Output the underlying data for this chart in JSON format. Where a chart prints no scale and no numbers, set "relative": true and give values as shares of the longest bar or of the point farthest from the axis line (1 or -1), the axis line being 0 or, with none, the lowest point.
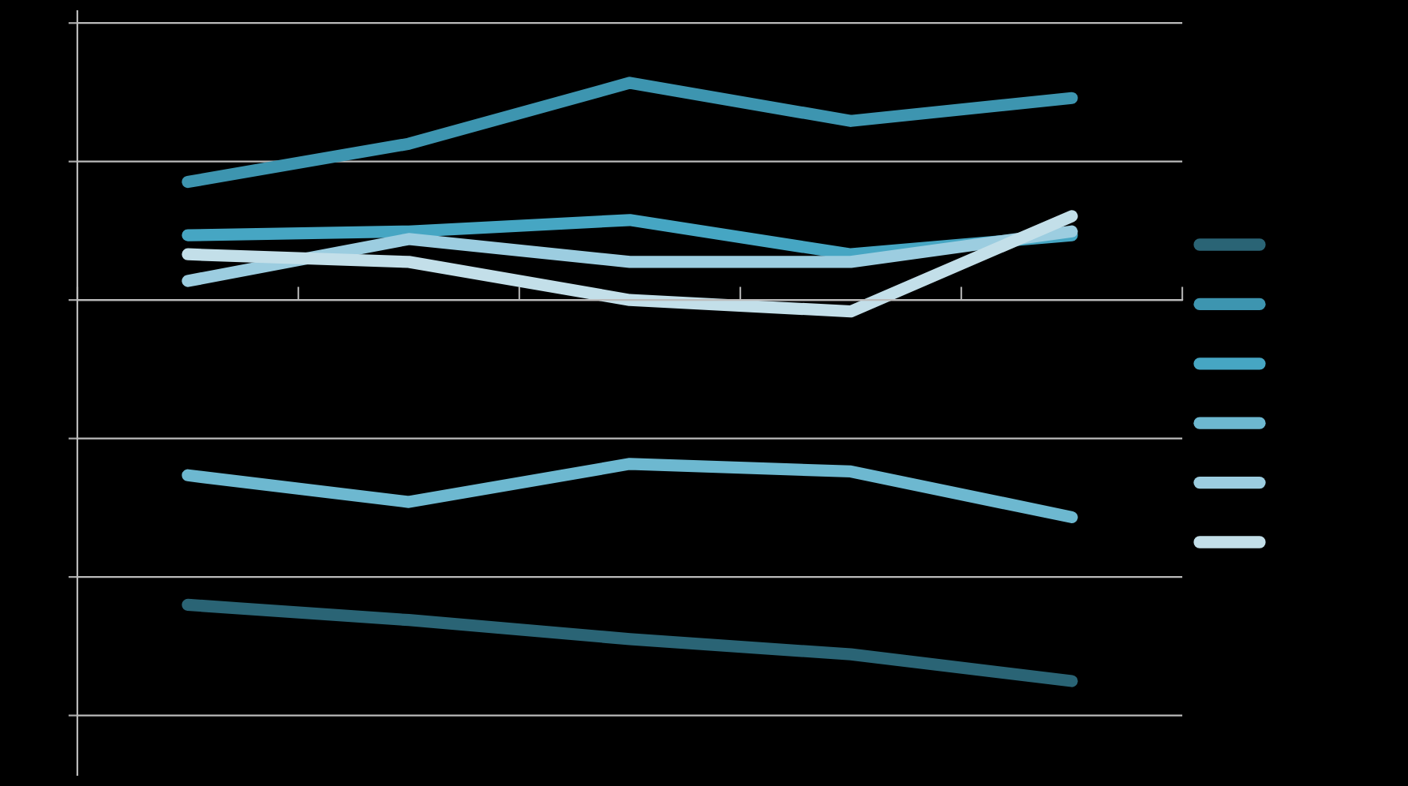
{
  "chart_data": {
    "type": "line",
    "relative": true,
    "categories": [
      null,
      null,
      null,
      null,
      null
    ],
    "grid": "y",
    "marker": "none",
    "line_style": "solid",
    "series": [
      {
        "color": "#2a6475",
        "values": [
          -0.8,
          -0.84,
          -0.89,
          -0.93,
          -1
        ]
      },
      {
        "color": "#3d95b0",
        "values": [
          0.31,
          0.41,
          0.57,
          0.47,
          0.53
        ]
      },
      {
        "color": "#46a6c3",
        "values": [
          0.17,
          0.18,
          0.21,
          0.12,
          0.17
        ]
      },
      {
        "color": "#6db8d0",
        "values": [
          -0.46,
          -0.53,
          -0.43,
          -0.45,
          -0.57
        ]
      },
      {
        "color": "#9ccde0",
        "values": [
          0.05,
          0.16,
          0.1,
          0.1,
          0.18
        ]
      },
      {
        "color": "#c3dfe9",
        "values": [
          0.12,
          0.1,
          0.0,
          -0.03,
          0.22
        ]
      }
    ]
  }
}
